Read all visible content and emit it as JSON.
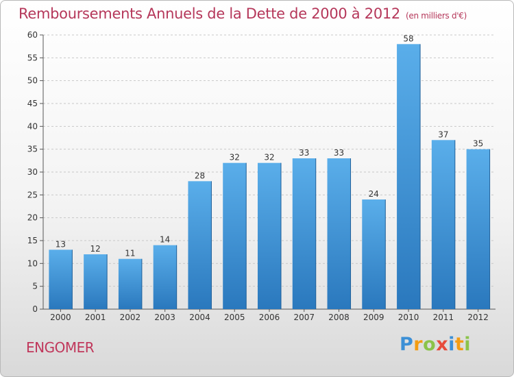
{
  "header": {
    "title": "Remboursements Annuels de la Dette de 2000 à 2012",
    "unit": "(en milliers d'€)"
  },
  "footer": {
    "commune": "ENGOMER",
    "logo_letters": [
      "P",
      "r",
      "o",
      "x",
      "i",
      "t",
      "i"
    ],
    "logo_colors": [
      "#3b8fd6",
      "#f39c12",
      "#8bc34a",
      "#e74c3c",
      "#3b8fd6",
      "#f39c12",
      "#8bc34a"
    ]
  },
  "chart_data": {
    "type": "bar",
    "categories": [
      "2000",
      "2001",
      "2002",
      "2003",
      "2004",
      "2005",
      "2006",
      "2007",
      "2008",
      "2009",
      "2010",
      "2011",
      "2012"
    ],
    "values": [
      13,
      12,
      11,
      14,
      28,
      32,
      32,
      33,
      33,
      24,
      58,
      37,
      35
    ],
    "value_labels": [
      "13",
      "12",
      "11",
      "14",
      "28",
      "32",
      "32",
      "33",
      "33",
      "24",
      "58",
      "37",
      "35"
    ],
    "ylim": [
      0,
      60
    ],
    "yticks": [
      0,
      5,
      10,
      15,
      20,
      25,
      30,
      35,
      40,
      45,
      50,
      55,
      60
    ],
    "grid": true,
    "bar_color": "#4a9fe0"
  }
}
